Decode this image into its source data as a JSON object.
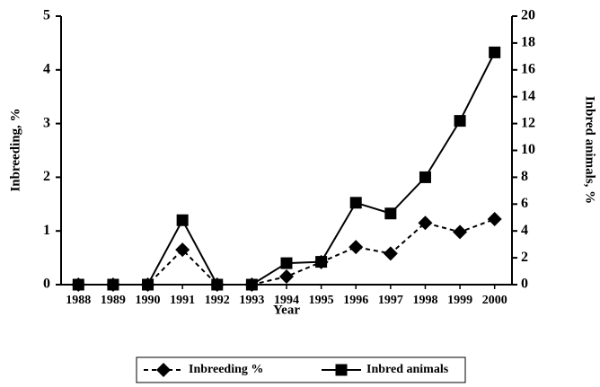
{
  "chart_data": {
    "type": "line",
    "x_label": "Year",
    "y_label": "Inbreeding, %",
    "y2_label": "Inbred animals, %",
    "categories": [
      "1988",
      "1989",
      "1990",
      "1991",
      "1992",
      "1993",
      "1994",
      "1995",
      "1996",
      "1997",
      "1998",
      "1999",
      "2000"
    ],
    "series": [
      {
        "name": "Inbreeding %",
        "color": "#000000",
        "axis": "y",
        "values": [
          0,
          0,
          0,
          0.65,
          0,
          0,
          0.15,
          0.42,
          0.7,
          0.58,
          1.15,
          0.98,
          1.22
        ]
      },
      {
        "name": "Inbred animals",
        "color": "#000000",
        "axis": "y2",
        "values": [
          0,
          0,
          0,
          4.8,
          0,
          0,
          1.6,
          1.7,
          6.1,
          5.3,
          8.0,
          12.2,
          17.3
        ]
      }
    ],
    "ylim": [
      0,
      5
    ],
    "yticks": [
      0,
      1,
      2,
      3,
      4,
      5
    ],
    "y2lim": [
      0,
      20
    ],
    "y2ticks": [
      0,
      2,
      4,
      6,
      8,
      10,
      12,
      14,
      16,
      18,
      20
    ],
    "legend": "bottom"
  }
}
